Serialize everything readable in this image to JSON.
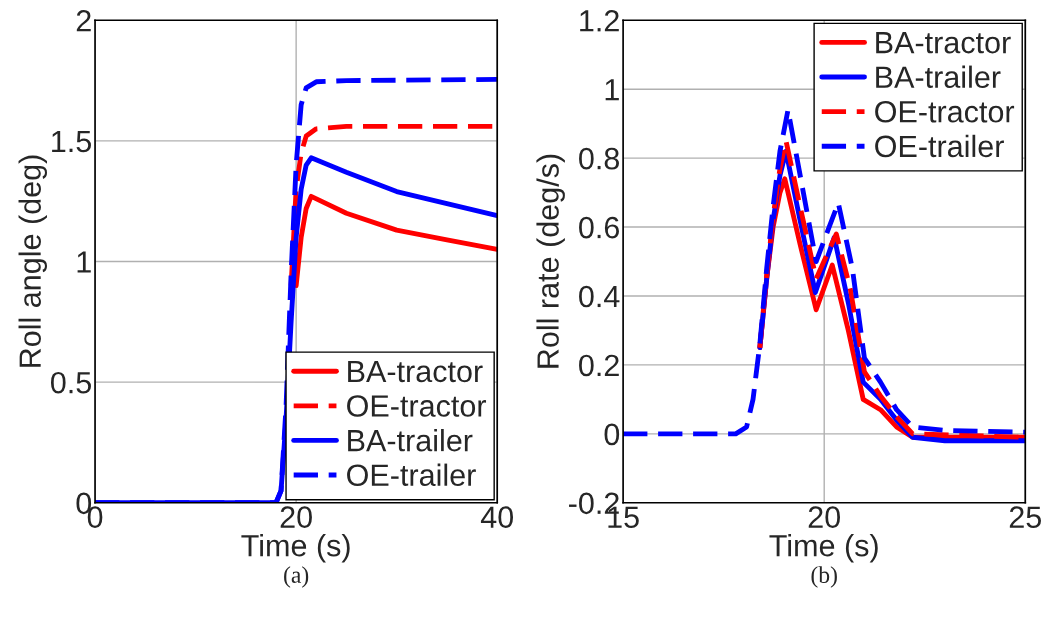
{
  "chart_data": [
    {
      "type": "line",
      "xlabel": "Time (s)",
      "ylabel": "Roll angle (deg)",
      "xlim": [
        0,
        40
      ],
      "ylim": [
        0,
        2
      ],
      "xticks": [
        0,
        20,
        40
      ],
      "yticks": [
        0,
        0.5,
        1,
        1.5,
        2
      ],
      "grid": true,
      "legend": "bottom right",
      "annotations": [
        "(a)"
      ],
      "series": [
        {
          "name": "BA-tractor",
          "color": "#ff0000",
          "line_style": "solid",
          "x": [
            20,
            20.5,
            21,
            21.5,
            25,
            30,
            35,
            40
          ],
          "values": [
            0.9,
            1.1,
            1.22,
            1.27,
            1.2,
            1.13,
            1.09,
            1.05
          ]
        },
        {
          "name": "OE-tractor",
          "color": "#ff0000",
          "line_style": "dashed",
          "x": [
            19.5,
            20,
            20.5,
            21,
            22,
            25,
            40
          ],
          "values": [
            0.9,
            1.3,
            1.45,
            1.52,
            1.55,
            1.56,
            1.56
          ]
        },
        {
          "name": "BA-trailer",
          "color": "#0000ff",
          "line_style": "solid",
          "x": [
            0,
            18,
            18.5,
            19,
            19.5,
            20,
            20.5,
            21,
            21.5,
            25,
            30,
            35,
            40
          ],
          "values": [
            0,
            0,
            0.05,
            0.35,
            0.75,
            1.1,
            1.3,
            1.4,
            1.43,
            1.37,
            1.29,
            1.24,
            1.19
          ]
        },
        {
          "name": "OE-trailer",
          "color": "#0000ff",
          "line_style": "dashed",
          "x": [
            0,
            18,
            18.5,
            19,
            19.5,
            20,
            20.5,
            21,
            22,
            25,
            40
          ],
          "values": [
            0,
            0,
            0.05,
            0.4,
            0.95,
            1.4,
            1.65,
            1.72,
            1.745,
            1.75,
            1.755
          ]
        }
      ]
    },
    {
      "type": "line",
      "xlabel": "Time (s)",
      "ylabel": "Roll rate (deg/s)",
      "xlim": [
        15,
        25
      ],
      "ylim": [
        -0.2,
        1.2
      ],
      "xticks": [
        15,
        20,
        25
      ],
      "yticks": [
        -0.2,
        0,
        0.2,
        0.4,
        0.6,
        0.8,
        1,
        1.2
      ],
      "grid": true,
      "legend": "top right",
      "annotations": [
        "(b)"
      ],
      "series": [
        {
          "name": "BA-tractor",
          "color": "#ff0000",
          "line_style": "solid",
          "x": [
            18.4,
            18.57,
            18.73,
            18.9,
            19.02,
            19.4,
            19.8,
            20.2,
            20.6,
            20.97,
            21.4,
            21.8,
            22.2,
            23,
            25
          ],
          "values": [
            0.25,
            0.45,
            0.6,
            0.7,
            0.74,
            0.55,
            0.36,
            0.49,
            0.3,
            0.1,
            0.07,
            0.02,
            -0.01,
            -0.01,
            -0.01
          ]
        },
        {
          "name": "BA-trailer",
          "color": "#0000ff",
          "line_style": "solid",
          "x": [
            18.4,
            18.57,
            18.73,
            18.9,
            19.05,
            19.4,
            19.78,
            20.25,
            20.6,
            20.97,
            21.4,
            21.8,
            22.2,
            23,
            25
          ],
          "values": [
            0.25,
            0.45,
            0.62,
            0.75,
            0.82,
            0.62,
            0.41,
            0.57,
            0.38,
            0.15,
            0.1,
            0.04,
            -0.01,
            -0.02,
            -0.02
          ]
        },
        {
          "name": "OE-tractor",
          "color": "#ff0000",
          "line_style": "dashed",
          "x": [
            18.4,
            18.57,
            18.73,
            18.9,
            19.05,
            19.4,
            19.8,
            20.3,
            20.65,
            21.0,
            21.4,
            21.8,
            22.2,
            25
          ],
          "values": [
            0.25,
            0.46,
            0.63,
            0.77,
            0.85,
            0.66,
            0.45,
            0.58,
            0.42,
            0.18,
            0.11,
            0.05,
            0.0,
            -0.01
          ]
        },
        {
          "name": "OE-trailer",
          "color": "#0000ff",
          "line_style": "dashed",
          "x": [
            15,
            17.8,
            18.07,
            18.23,
            18.4,
            18.57,
            18.73,
            18.9,
            19.1,
            19.45,
            19.8,
            20.35,
            20.7,
            21.0,
            21.4,
            21.8,
            22.2,
            23,
            25
          ],
          "values": [
            0,
            0,
            0.02,
            0.1,
            0.26,
            0.48,
            0.66,
            0.82,
            0.94,
            0.72,
            0.5,
            0.67,
            0.48,
            0.22,
            0.15,
            0.07,
            0.02,
            0.01,
            0.005
          ]
        }
      ]
    }
  ]
}
